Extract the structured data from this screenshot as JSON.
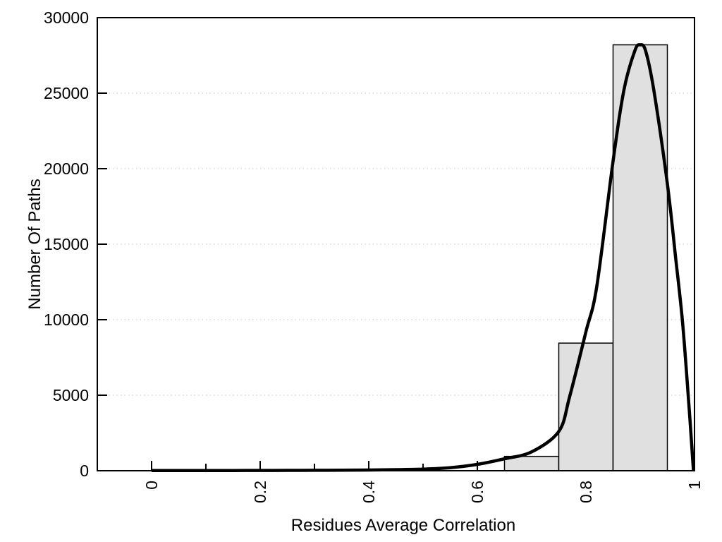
{
  "chart_data": {
    "type": "bar",
    "subtype": "histogram-with-density-curve",
    "xlabel": "Residues Average Correlation",
    "ylabel": "Number Of Paths",
    "xlim": [
      -0.1,
      1.0
    ],
    "ylim": [
      0,
      30000
    ],
    "grid": "horizontal-dotted",
    "legend_position": "none",
    "x_major_ticks": [
      0,
      0.2,
      0.4,
      0.6,
      0.8,
      1
    ],
    "x_major_tick_labels": [
      "0",
      "0.2",
      "0.4",
      "0.6",
      "0.8",
      "1"
    ],
    "x_minor_ticks": [
      0.1,
      0.3,
      0.5,
      0.7,
      0.9
    ],
    "x_tick_label_rotation_deg": -90,
    "y_ticks": [
      0,
      5000,
      10000,
      15000,
      20000,
      25000,
      30000
    ],
    "y_tick_labels": [
      "0",
      "5000",
      "10000",
      "15000",
      "20000",
      "25000",
      "30000"
    ],
    "bars": [
      {
        "x_from": 0.65,
        "x_to": 0.75,
        "count": 950
      },
      {
        "x_from": 0.75,
        "x_to": 0.85,
        "count": 8450
      },
      {
        "x_from": 0.85,
        "x_to": 0.95,
        "count": 28200
      }
    ],
    "density_curve": {
      "peak_x": 0.9,
      "peak_count": 28200,
      "points": [
        [
          0.0,
          15
        ],
        [
          0.05,
          15
        ],
        [
          0.1,
          15
        ],
        [
          0.15,
          16
        ],
        [
          0.2,
          18
        ],
        [
          0.25,
          22
        ],
        [
          0.3,
          27
        ],
        [
          0.35,
          35
        ],
        [
          0.4,
          48
        ],
        [
          0.45,
          70
        ],
        [
          0.5,
          105
        ],
        [
          0.55,
          200
        ],
        [
          0.6,
          420
        ],
        [
          0.65,
          790
        ],
        [
          0.7,
          1250
        ],
        [
          0.75,
          2600
        ],
        [
          0.77,
          4900
        ],
        [
          0.8,
          9200
        ],
        [
          0.82,
          12200
        ],
        [
          0.85,
          20500
        ],
        [
          0.87,
          25200
        ],
        [
          0.89,
          27800
        ],
        [
          0.9,
          28200
        ],
        [
          0.91,
          27800
        ],
        [
          0.925,
          25200
        ],
        [
          0.95,
          19000
        ],
        [
          0.965,
          14200
        ],
        [
          0.978,
          9800
        ],
        [
          0.99,
          4200
        ],
        [
          0.998,
          0
        ]
      ]
    },
    "colors": {
      "background": "#ffffff",
      "bar_fill": "#e0e0e0",
      "bar_border": "#000000",
      "curve": "#000000",
      "axis": "#000000",
      "grid": "#c4c4c4",
      "text": "#000000"
    }
  }
}
